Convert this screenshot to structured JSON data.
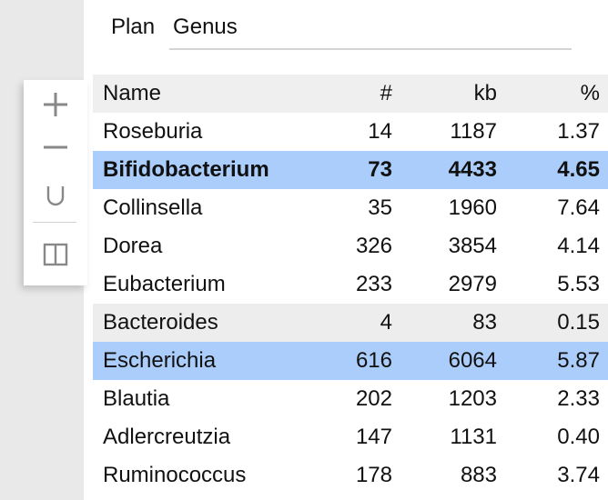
{
  "header": {
    "label": "Plan",
    "field_value": "Genus"
  },
  "toolbar": {
    "add": "plus-icon",
    "remove": "minus-icon",
    "union": "union-icon",
    "split": "split-view-icon"
  },
  "table": {
    "columns": [
      "Name",
      "#",
      "kb",
      "%"
    ],
    "rows": [
      {
        "name": "Roseburia",
        "count": "14",
        "kb": "1187",
        "pct": "1.37",
        "state": ""
      },
      {
        "name": "Bifidobacterium",
        "count": "73",
        "kb": "4433",
        "pct": "4.65",
        "state": "selected bold"
      },
      {
        "name": "Collinsella",
        "count": "35",
        "kb": "1960",
        "pct": "7.64",
        "state": ""
      },
      {
        "name": "Dorea",
        "count": "326",
        "kb": "3854",
        "pct": "4.14",
        "state": ""
      },
      {
        "name": "Eubacterium",
        "count": "233",
        "kb": "2979",
        "pct": "5.53",
        "state": ""
      },
      {
        "name": "Bacteroides",
        "count": "4",
        "kb": "83",
        "pct": "0.15",
        "state": "hover"
      },
      {
        "name": "Escherichia",
        "count": "616",
        "kb": "6064",
        "pct": "5.87",
        "state": "selected"
      },
      {
        "name": "Blautia",
        "count": "202",
        "kb": "1203",
        "pct": "2.33",
        "state": ""
      },
      {
        "name": "Adlercreutzia",
        "count": "147",
        "kb": "1131",
        "pct": "0.40",
        "state": ""
      },
      {
        "name": "Ruminococcus",
        "count": "178",
        "kb": "883",
        "pct": "3.74",
        "state": ""
      }
    ]
  },
  "colors": {
    "selected_row": "#abcdfb",
    "header_bg": "#efefef",
    "hover_row": "#ededed",
    "icon": "#888888"
  }
}
